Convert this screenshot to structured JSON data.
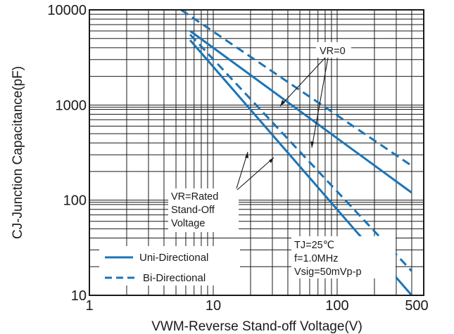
{
  "chart_data": {
    "type": "line",
    "x_scale": "log",
    "y_scale": "log",
    "xlim": [
      1,
      500
    ],
    "ylim": [
      10,
      10000
    ],
    "xlabel": "VWM-Reverse Stand-off Voltage(V)",
    "ylabel": "CJ-Junction Capacitance(pF)",
    "x_ticks": [
      "1",
      "10",
      "100",
      "500"
    ],
    "y_ticks": [
      "10",
      "100",
      "1000",
      "10000"
    ],
    "grid": true,
    "series_color": "#1a75b8",
    "series": [
      {
        "style": "solid",
        "x": [
          6.5,
          400
        ],
        "y": [
          6000,
          120
        ]
      },
      {
        "style": "dashed",
        "x": [
          5.5,
          400
        ],
        "y": [
          10000,
          230
        ]
      },
      {
        "style": "solid",
        "x": [
          6.5,
          400
        ],
        "y": [
          4800,
          10
        ]
      },
      {
        "style": "dashed",
        "x": [
          6.5,
          400
        ],
        "y": [
          5500,
          18
        ]
      }
    ],
    "annotations": {
      "vr_zero": "VR=0",
      "rated_line1": "VR=Rated",
      "rated_line2": "Stand-Off",
      "rated_line3": "Voltage",
      "conditions_line1": "TJ=25℃",
      "conditions_line2": "f=1.0MHz",
      "conditions_line3": "Vsig=50mVp-p"
    },
    "legend": {
      "placement": "bottom-left",
      "entries": [
        {
          "label": "Uni-Directional",
          "style": "solid"
        },
        {
          "label": "Bi-Directional",
          "style": "dashed"
        }
      ]
    }
  }
}
